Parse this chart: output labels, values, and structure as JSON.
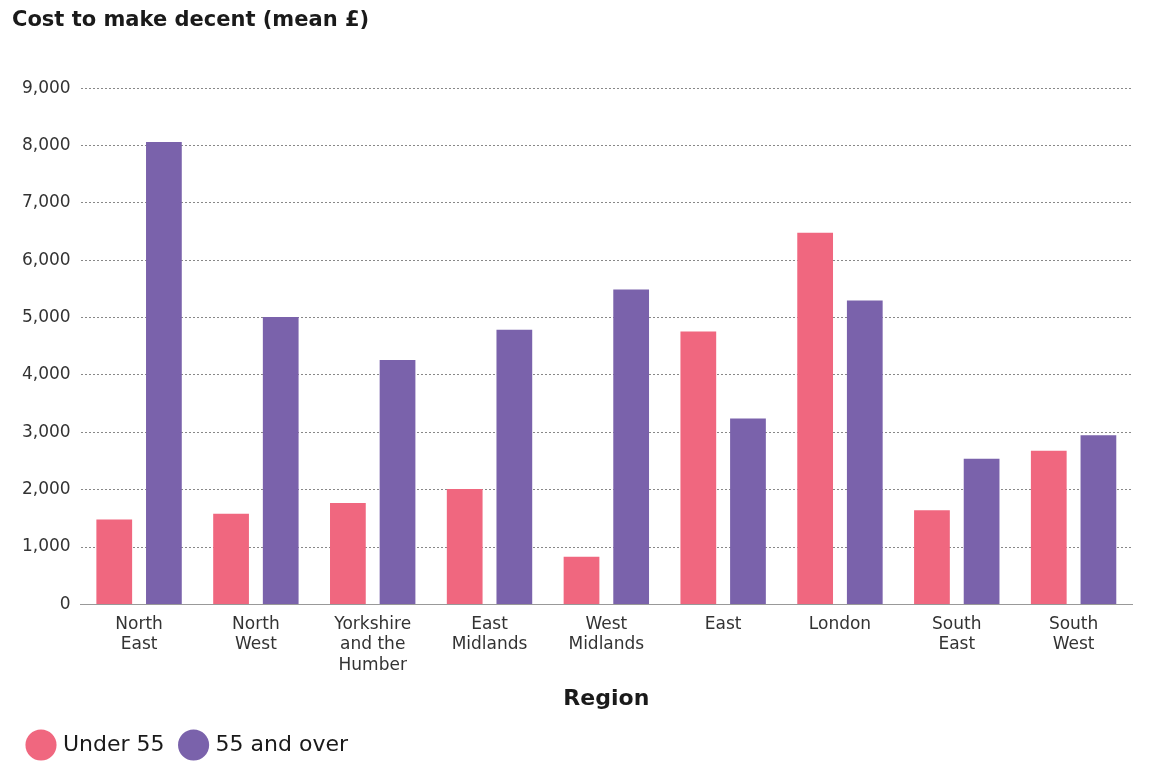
{
  "chart_data": {
    "type": "bar",
    "title": "Cost to make decent (mean £)",
    "xlabel": "Region",
    "categories": [
      "North East",
      "North West",
      "Yorkshire and the Humber",
      "East Midlands",
      "West Midlands",
      "East",
      "London",
      "South East",
      "South West"
    ],
    "series": [
      {
        "name": "Under 55",
        "color": "#f0677f",
        "values": [
          1480,
          1580,
          1770,
          2010,
          830,
          4760,
          6480,
          1640,
          2680
        ]
      },
      {
        "name": "55 and over",
        "color": "#7a62ab",
        "values": [
          8060,
          5010,
          4260,
          4790,
          5490,
          3240,
          5300,
          2540,
          2950
        ]
      }
    ],
    "ylim": [
      0,
      9000
    ],
    "yticks": [
      0,
      {
        "value": 1000,
        "label": "1,000"
      },
      {
        "value": 2000,
        "label": "2,000"
      },
      {
        "value": 3000,
        "label": "3,000"
      },
      {
        "value": 4000,
        "label": "4,000"
      },
      {
        "value": 5000,
        "label": "5,000"
      },
      {
        "value": 6000,
        "label": "6,000"
      },
      {
        "value": 7000,
        "label": "7,000"
      },
      {
        "value": 8000,
        "label": "8,000"
      },
      {
        "value": 9000,
        "label": "9,000"
      }
    ],
    "grid": "y",
    "legend": "bottom left"
  }
}
